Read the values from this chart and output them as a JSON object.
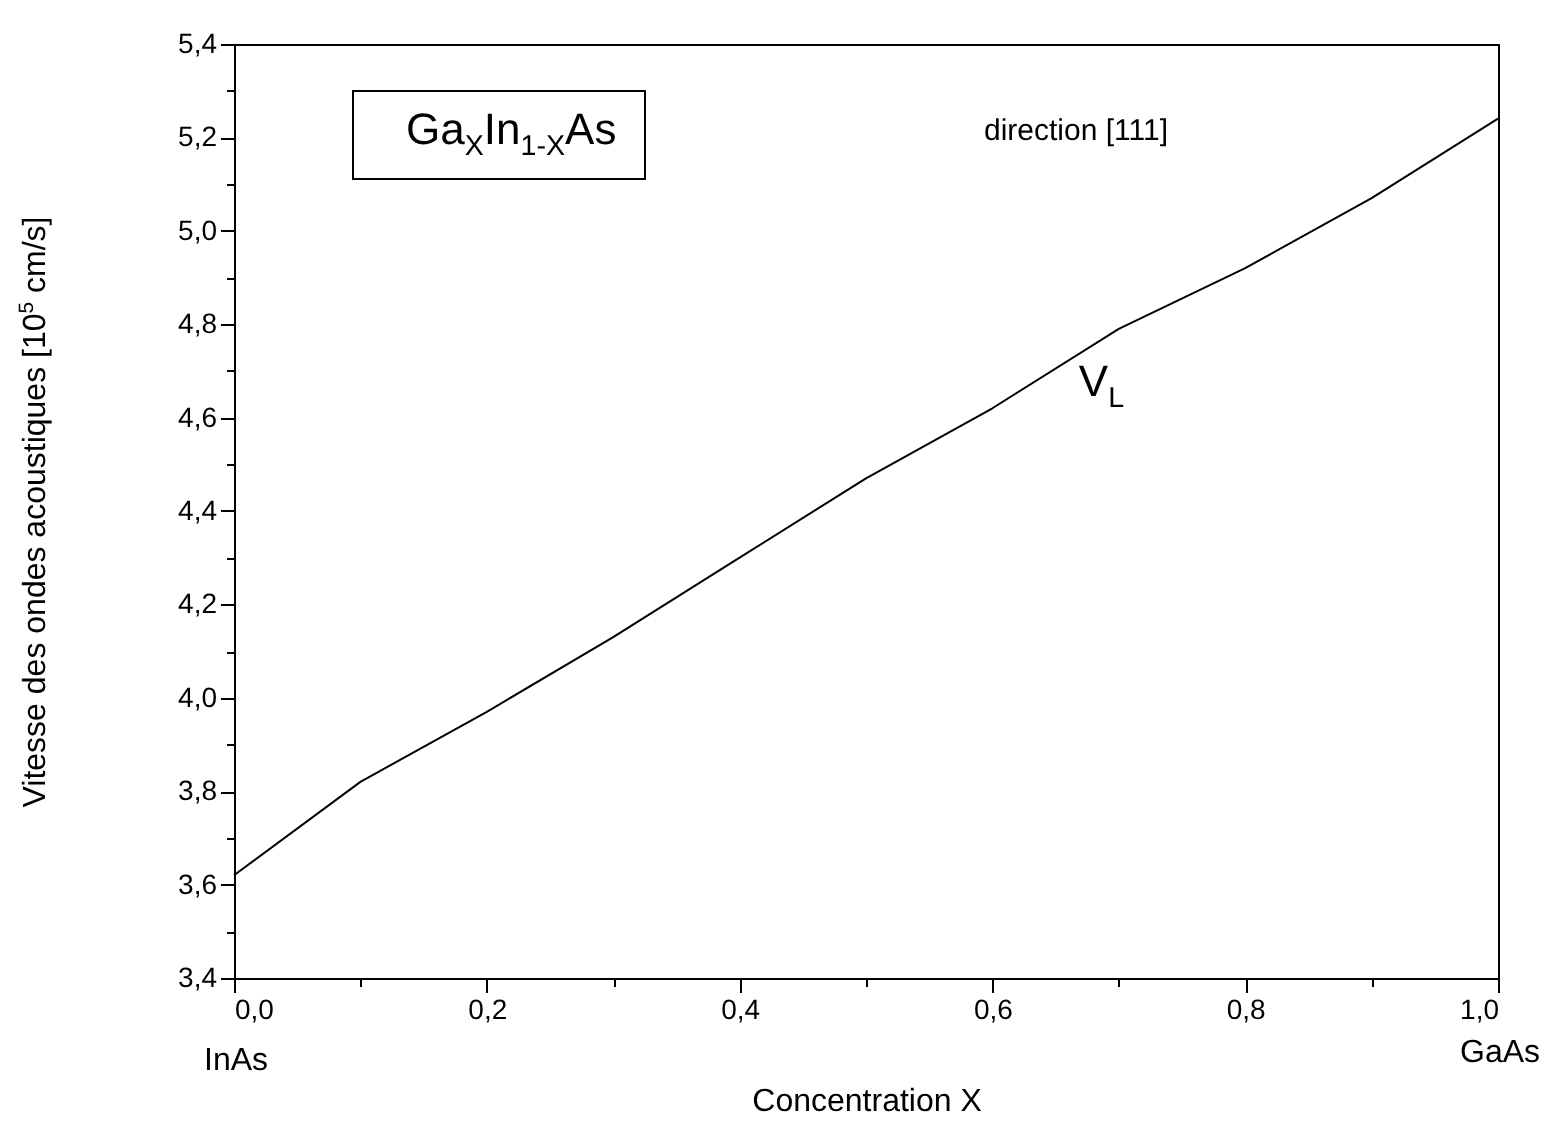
{
  "chart_data": {
    "type": "line",
    "xlabel": "Concentration X",
    "ylabel": "Vitesse des ondes acoustiques [10$^{5}$ cm/s]",
    "x": [
      0,
      0.1,
      0.2,
      0.3,
      0.4,
      0.5,
      0.6,
      0.7,
      0.8,
      0.9,
      1.0
    ],
    "series": [
      {
        "name": "V$_{L}$",
        "color": "#000000",
        "values": [
          3.62,
          3.82,
          3.97,
          4.13,
          4.3,
          4.47,
          4.62,
          4.79,
          4.92,
          5.07,
          5.24
        ]
      }
    ],
    "xlim": [
      0,
      1
    ],
    "ylim": [
      3.4,
      5.4
    ],
    "xticks": [
      {
        "value": 0,
        "label": "0,0"
      },
      {
        "value": 0.1,
        "label": null
      },
      {
        "value": 0.2,
        "label": "0,2"
      },
      {
        "value": 0.3,
        "label": null
      },
      {
        "value": 0.4,
        "label": "0,4"
      },
      {
        "value": 0.5,
        "label": null
      },
      {
        "value": 0.6,
        "label": "0,6"
      },
      {
        "value": 0.7,
        "label": null
      },
      {
        "value": 0.8,
        "label": "0,8"
      },
      {
        "value": 0.9,
        "label": null
      },
      {
        "value": 1.0,
        "label": "1,0"
      }
    ],
    "yticks": [
      {
        "value": 3.4,
        "label": "3,4"
      },
      {
        "value": 3.5,
        "label": null
      },
      {
        "value": 3.6,
        "label": "3,6"
      },
      {
        "value": 3.7,
        "label": null
      },
      {
        "value": 3.8,
        "label": "3,8"
      },
      {
        "value": 3.9,
        "label": null
      },
      {
        "value": 4.0,
        "label": "4,0"
      },
      {
        "value": 4.1,
        "label": null
      },
      {
        "value": 4.2,
        "label": "4,2"
      },
      {
        "value": 4.3,
        "label": null
      },
      {
        "value": 4.4,
        "label": "4,4"
      },
      {
        "value": 4.5,
        "label": null
      },
      {
        "value": 4.6,
        "label": "4,6"
      },
      {
        "value": 4.7,
        "label": null
      },
      {
        "value": 4.8,
        "label": "4,8"
      },
      {
        "value": 4.9,
        "label": null
      },
      {
        "value": 5.0,
        "label": "5,0"
      },
      {
        "value": 5.1,
        "label": null
      },
      {
        "value": 5.2,
        "label": "5,2"
      },
      {
        "value": 5.3,
        "label": null
      },
      {
        "value": 5.4,
        "label": "5,4"
      }
    ],
    "annotations": [
      "Ga$_{X}$In$_{1-X}$As",
      "direction [111]",
      "InAs",
      "GaAs"
    ],
    "grid": false,
    "marker": "none",
    "line_style": "solid"
  }
}
